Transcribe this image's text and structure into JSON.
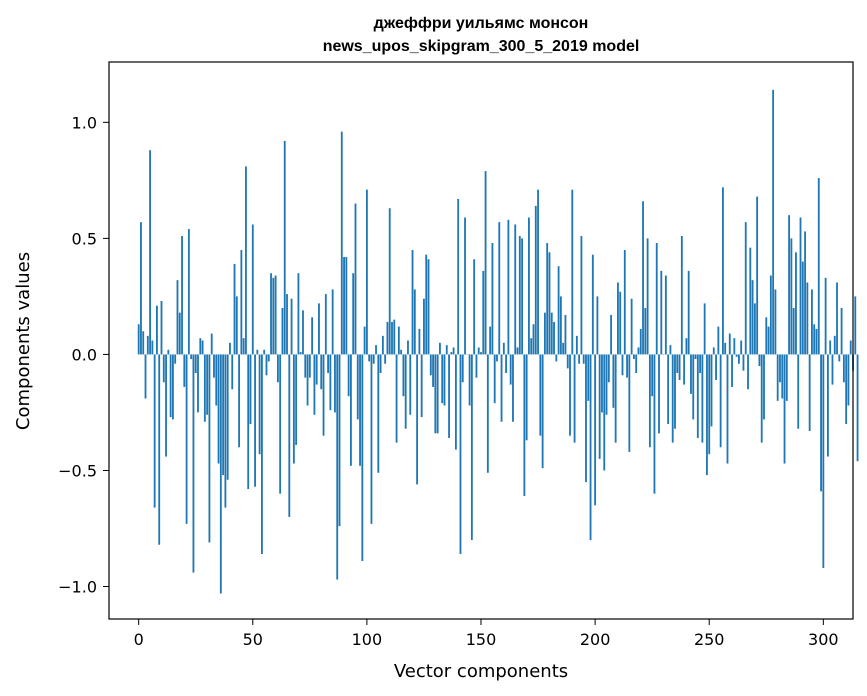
{
  "chart_data": {
    "type": "bar",
    "title": "джеффри уильямс монсон",
    "subtitle": "news_upos_skipgram_300_5_2019 model",
    "xlabel": "Vector components",
    "ylabel": "Components values",
    "xlim": [
      -13,
      313
    ],
    "ylim": [
      -1.14,
      1.26
    ],
    "xticks": [
      0,
      50,
      100,
      150,
      200,
      250,
      300
    ],
    "xtick_labels": [
      "0",
      "50",
      "100",
      "150",
      "200",
      "250",
      "300"
    ],
    "yticks": [
      -1.0,
      -0.5,
      0.0,
      0.5,
      1.0
    ],
    "ytick_labels": [
      "−1.0",
      "−0.5",
      "0.0",
      "0.5",
      "1.0"
    ],
    "bar_color": "#1f77b4",
    "values": [
      0.13,
      0.57,
      0.1,
      -0.19,
      0.08,
      0.88,
      0.06,
      -0.66,
      0.21,
      -0.82,
      0.23,
      -0.12,
      -0.44,
      0.02,
      -0.27,
      -0.28,
      -0.04,
      0.32,
      0.18,
      0.51,
      -0.14,
      -0.73,
      0.54,
      -0.02,
      -0.94,
      -0.08,
      -0.25,
      0.07,
      0.06,
      -0.29,
      -0.26,
      -0.81,
      0.09,
      -0.1,
      -0.22,
      -0.47,
      -1.03,
      -0.52,
      -0.66,
      -0.54,
      0.05,
      -0.15,
      0.39,
      0.25,
      -0.4,
      0.45,
      0.07,
      0.81,
      -0.58,
      -0.3,
      0.56,
      -0.57,
      0.02,
      -0.43,
      -0.86,
      0.02,
      -0.09,
      -0.03,
      0.35,
      0.33,
      0.34,
      -0.12,
      -0.6,
      0.2,
      0.92,
      0.26,
      -0.7,
      0.24,
      -0.47,
      -0.39,
      0.35,
      0.01,
      0.19,
      -0.1,
      -0.22,
      -0.1,
      0.16,
      -0.26,
      -0.13,
      0.22,
      -0.15,
      -0.35,
      0.26,
      -0.08,
      -0.24,
      0.28,
      -0.25,
      -0.97,
      -0.74,
      0.96,
      0.42,
      0.42,
      -0.18,
      -0.48,
      0.35,
      0.65,
      -0.28,
      -0.48,
      -0.89,
      0.12,
      0.71,
      -0.03,
      -0.73,
      -0.04,
      0.04,
      -0.51,
      -0.08,
      0.08,
      -0.04,
      0.14,
      0.63,
      0.14,
      0.15,
      -0.38,
      0.12,
      0.02,
      -0.18,
      -0.32,
      0.06,
      -0.26,
      0.45,
      0.28,
      -0.56,
      0.11,
      -0.27,
      0.24,
      0.43,
      0.41,
      -0.09,
      -0.14,
      -0.34,
      -0.34,
      0.05,
      -0.21,
      -0.22,
      0.04,
      -0.36,
      0.01,
      0.03,
      -0.41,
      0.67,
      -0.86,
      -0.12,
      0.59,
      0.0,
      -0.22,
      -0.8,
      0.41,
      -0.1,
      0.03,
      0.01,
      0.36,
      0.79,
      -0.51,
      0.12,
      0.48,
      -0.21,
      -0.03,
      0.57,
      -0.29,
      0.05,
      -0.08,
      0.58,
      -0.13,
      -0.29,
      0.56,
      0.03,
      0.51,
      0.5,
      -0.61,
      -0.37,
      0.59,
      0.07,
      0.13,
      0.64,
      0.71,
      -0.35,
      -0.49,
      0.18,
      0.48,
      0.44,
      0.18,
      0.14,
      -0.03,
      0.38,
      0.25,
      0.05,
      0.17,
      -0.06,
      -0.35,
      0.71,
      -0.38,
      0.08,
      -0.04,
      0.51,
      -0.04,
      -0.55,
      -0.2,
      -0.8,
      0.43,
      -0.65,
      0.25,
      -0.45,
      -0.25,
      -0.5,
      -0.26,
      -0.12,
      0.17,
      -0.23,
      -0.38,
      0.31,
      0.27,
      -0.09,
      0.45,
      -0.1,
      -0.42,
      0.24,
      -0.02,
      -0.08,
      0.03,
      0.11,
      0.66,
      0.2,
      0.5,
      -0.4,
      -0.18,
      -0.6,
      0.48,
      -0.34,
      0.36,
      0.0,
      0.34,
      -0.3,
      0.04,
      -0.38,
      -0.32,
      -0.08,
      -0.11,
      0.51,
      -0.13,
      0.07,
      0.36,
      -0.17,
      -0.28,
      -0.02,
      -0.36,
      -0.08,
      -0.38,
      0.22,
      -0.52,
      -0.43,
      -0.31,
      0.03,
      -0.11,
      0.12,
      -0.4,
      0.72,
      0.05,
      -0.47,
      0.09,
      -0.14,
      0.07,
      -0.01,
      -0.04,
      0.06,
      -0.07,
      0.57,
      -0.15,
      0.46,
      0.32,
      0.22,
      0.68,
      -0.05,
      -0.38,
      -0.28,
      0.16,
      0.12,
      0.34,
      1.14,
      0.28,
      -0.2,
      -0.12,
      -0.19,
      -0.47,
      -0.2,
      0.6,
      0.5,
      0.2,
      0.44,
      -0.32,
      0.59,
      0.4,
      0.53,
      0.31,
      -0.33,
      0.28,
      0.13,
      0.11,
      0.76,
      -0.59,
      -0.92,
      0.33,
      -0.44,
      0.06,
      -0.13,
      0.08,
      0.31,
      -0.03,
      0.2,
      -0.12,
      -0.3,
      -0.22,
      0.06,
      -0.07,
      0.25,
      -0.46
    ]
  }
}
